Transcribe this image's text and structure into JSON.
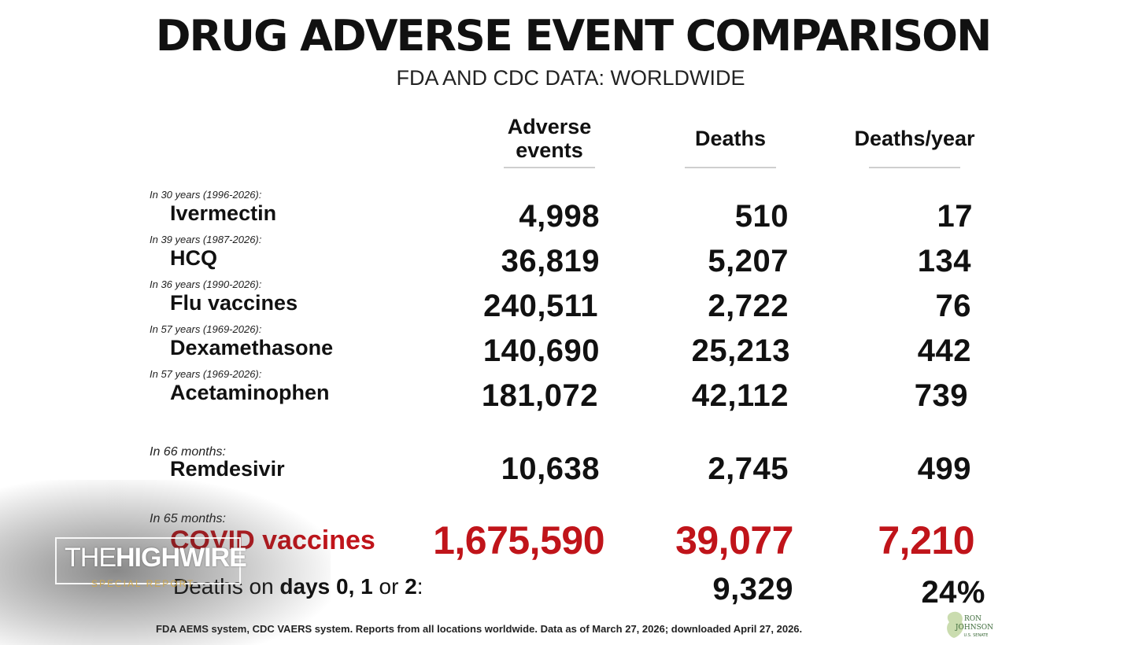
{
  "title": "DRUG ADVERSE EVENT COMPARISON",
  "subtitle": "FDA AND CDC DATA: WORLDWIDE",
  "columns": {
    "adverse_line1": "Adverse",
    "adverse_line2": "events",
    "deaths": "Deaths",
    "deaths_per_year": "Deaths/year"
  },
  "rows": [
    {
      "period": "In 30 years (1996-2026):",
      "drug": "Ivermectin",
      "adverse": "4,998",
      "deaths": "510",
      "per_year": "17"
    },
    {
      "period": "In 39 years (1987-2026):",
      "drug": "HCQ",
      "adverse": "36,819",
      "deaths": "5,207",
      "per_year": "134"
    },
    {
      "period": "In 36 years (1990-2026):",
      "drug": "Flu vaccines",
      "adverse": "240,511",
      "deaths": "2,722",
      "per_year": "76"
    },
    {
      "period": "In 57 years (1969-2026):",
      "drug": "Dexamethasone",
      "adverse": "140,690",
      "deaths": "25,213",
      "per_year": "442"
    },
    {
      "period": "In 57 years (1969-2026):",
      "drug": "Acetaminophen",
      "adverse": "181,072",
      "deaths": "42,112",
      "per_year": "739"
    },
    {
      "period": "In 66 months:",
      "drug": "Remdesivir",
      "adverse": "10,638",
      "deaths": "2,745",
      "per_year": "499"
    }
  ],
  "covid": {
    "period": "In 65 months:",
    "drug": "COVID vaccines",
    "adverse": "1,675,590",
    "deaths": "39,077",
    "per_year": "7,210"
  },
  "early_deaths": {
    "label_pre": "Deaths on ",
    "label_bold": "days 0, 1",
    "label_or": " or ",
    "label_two": "2",
    "label_colon": ":",
    "deaths": "9,329",
    "percent": "24%"
  },
  "footnote": "FDA AEMS system, CDC VAERS system. Reports from all locations worldwide. Data as of March 27, 2026; downloaded April 27, 2026.",
  "watermark": {
    "brand_a": "THE",
    "brand_b": "HIGHWIRE",
    "brand_sub": "SPECIAL REPORT"
  },
  "seal": {
    "line1": "RON",
    "line2": "JOHNSON",
    "line3": "U.S. SENATE"
  },
  "colors": {
    "accent_red": "#c0141a",
    "text": "#111111",
    "watermark_gold": "#c9a550"
  }
}
